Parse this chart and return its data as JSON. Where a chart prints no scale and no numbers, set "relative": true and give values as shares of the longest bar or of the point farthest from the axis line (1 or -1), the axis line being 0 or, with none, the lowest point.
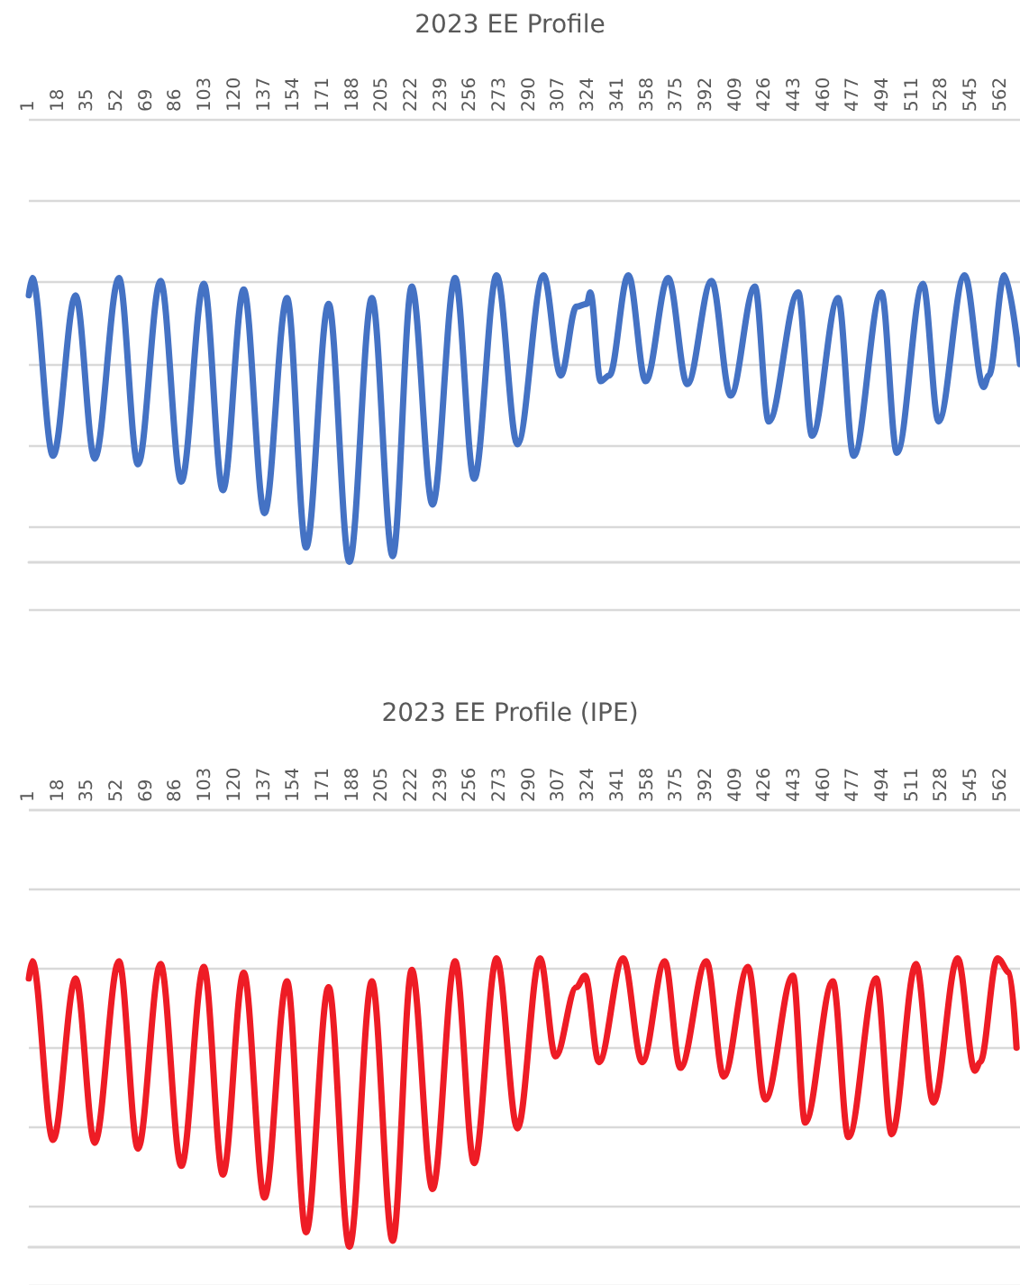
{
  "chart_data": [
    {
      "type": "line",
      "title": "2023 EE Profile",
      "relative": true,
      "grid": "y",
      "xlim": [
        1,
        573
      ],
      "xticks": [
        1,
        18,
        35,
        52,
        69,
        86,
        103,
        120,
        137,
        154,
        171,
        188,
        205,
        222,
        239,
        256,
        273,
        290,
        307,
        324,
        341,
        358,
        375,
        392,
        409,
        426,
        443,
        460,
        477,
        494,
        511,
        528,
        545,
        562
      ],
      "x": [
        1,
        3,
        15,
        28,
        39,
        53,
        64,
        77,
        89,
        102,
        113,
        125,
        137,
        150,
        161,
        174,
        186,
        199,
        211,
        222,
        234,
        247,
        258,
        271,
        283,
        298,
        308,
        317,
        323,
        325,
        331,
        336,
        347,
        357,
        370,
        381,
        395,
        406,
        420,
        428,
        445,
        453,
        468,
        477,
        493,
        502,
        517,
        526,
        541,
        552,
        555,
        564,
        573
      ],
      "series": [
        {
          "color": "#4472c4",
          "values": [
            0.93,
            0.99,
            0.37,
            0.93,
            0.36,
            0.99,
            0.34,
            0.98,
            0.28,
            0.97,
            0.25,
            0.95,
            0.17,
            0.92,
            0.05,
            0.9,
            0,
            0.92,
            0.02,
            0.96,
            0.2,
            0.99,
            0.29,
            1,
            0.41,
            1,
            0.65,
            0.89,
            0.9,
            0.94,
            0.63,
            0.65,
            1,
            0.63,
            0.99,
            0.62,
            0.98,
            0.58,
            0.96,
            0.49,
            0.94,
            0.44,
            0.92,
            0.37,
            0.94,
            0.38,
            0.97,
            0.49,
            1,
            0.61,
            0.65,
            1,
            0.69
          ]
        }
      ]
    },
    {
      "type": "line",
      "title": "2023 EE Profile (IPE)",
      "relative": true,
      "grid": "y",
      "xlim": [
        1,
        573
      ],
      "xticks": [
        1,
        18,
        35,
        52,
        69,
        86,
        103,
        120,
        137,
        154,
        171,
        188,
        205,
        222,
        239,
        256,
        273,
        290,
        307,
        324,
        341,
        358,
        375,
        392,
        409,
        426,
        443,
        460,
        477,
        494,
        511,
        528,
        545,
        562
      ],
      "x": [
        1,
        3,
        15,
        28,
        39,
        53,
        64,
        77,
        89,
        102,
        113,
        125,
        137,
        150,
        161,
        174,
        186,
        199,
        211,
        222,
        234,
        247,
        258,
        271,
        283,
        296,
        305,
        317,
        322,
        330,
        344,
        355,
        368,
        377,
        392,
        402,
        416,
        426,
        442,
        449,
        465,
        474,
        490,
        499,
        513,
        523,
        537,
        547,
        550,
        560,
        567,
        571
      ],
      "series": [
        {
          "color": "#ee1c25",
          "values": [
            0.93,
            0.99,
            0.37,
            0.93,
            0.36,
            0.99,
            0.34,
            0.98,
            0.28,
            0.97,
            0.25,
            0.95,
            0.17,
            0.92,
            0.05,
            0.9,
            0,
            0.92,
            0.02,
            0.96,
            0.2,
            0.99,
            0.29,
            1,
            0.41,
            1,
            0.66,
            0.9,
            0.94,
            0.64,
            1,
            0.64,
            0.99,
            0.62,
            0.99,
            0.59,
            0.97,
            0.51,
            0.94,
            0.43,
            0.92,
            0.38,
            0.93,
            0.39,
            0.98,
            0.5,
            1,
            0.61,
            0.64,
            1,
            0.95,
            0.69
          ]
        }
      ]
    }
  ]
}
